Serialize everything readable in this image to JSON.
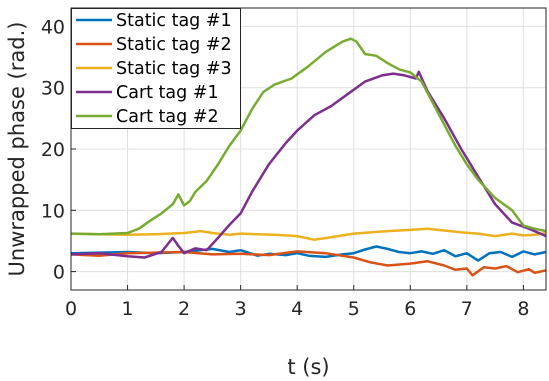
{
  "chart_data": {
    "type": "line",
    "title": "",
    "xlabel": "t (s)",
    "ylabel": "Unwrapped phase (rad.)",
    "xlim": [
      0,
      8.4
    ],
    "ylim": [
      -3,
      43
    ],
    "xticks": [
      0,
      1,
      2,
      3,
      4,
      5,
      6,
      7,
      8
    ],
    "yticks": [
      0,
      10,
      20,
      30,
      40
    ],
    "grid": true,
    "legend_position": "top-left",
    "series": [
      {
        "name": "Static tag #1",
        "color": "#0072bd",
        "x": [
          0,
          0.5,
          1,
          1.5,
          2,
          2.5,
          2.8,
          3,
          3.3,
          3.5,
          3.8,
          4,
          4.2,
          4.5,
          4.8,
          5,
          5.2,
          5.4,
          5.6,
          5.8,
          6,
          6.2,
          6.4,
          6.6,
          6.8,
          7,
          7.2,
          7.4,
          7.6,
          7.8,
          8,
          8.2,
          8.4
        ],
        "y": [
          3.0,
          3.1,
          3.2,
          3.0,
          3.2,
          3.7,
          3.2,
          3.5,
          2.6,
          2.9,
          2.7,
          3.0,
          2.6,
          2.4,
          2.8,
          3.0,
          3.6,
          4.1,
          3.7,
          3.2,
          3.0,
          3.3,
          2.9,
          3.5,
          2.5,
          3.0,
          1.8,
          3.0,
          3.2,
          2.4,
          3.3,
          2.8,
          3.2
        ]
      },
      {
        "name": "Static tag #2",
        "color": "#d95319",
        "x": [
          0,
          0.5,
          1,
          1.5,
          2,
          2.5,
          3,
          3.5,
          4,
          4.5,
          5,
          5.3,
          5.6,
          6,
          6.3,
          6.6,
          6.8,
          7,
          7.1,
          7.3,
          7.5,
          7.7,
          7.9,
          8.1,
          8.2,
          8.4
        ],
        "y": [
          2.8,
          2.6,
          3.0,
          3.1,
          3.2,
          2.8,
          2.9,
          2.7,
          3.3,
          3.0,
          2.3,
          1.5,
          1.0,
          1.3,
          1.7,
          1.0,
          0.3,
          0.5,
          -0.6,
          0.7,
          0.5,
          0.9,
          -0.1,
          0.4,
          -0.2,
          0.2
        ]
      },
      {
        "name": "Static tag #3",
        "color": "#edb120",
        "x": [
          0,
          0.5,
          1,
          1.5,
          2,
          2.3,
          2.5,
          2.8,
          3,
          3.3,
          3.6,
          4,
          4.3,
          4.6,
          5,
          5.3,
          5.6,
          6,
          6.3,
          6.6,
          6.9,
          7.2,
          7.5,
          7.8,
          8,
          8.2,
          8.4
        ],
        "y": [
          6.2,
          6.1,
          6.0,
          6.1,
          6.3,
          6.6,
          6.3,
          6.0,
          6.2,
          6.1,
          6.0,
          5.8,
          5.2,
          5.6,
          6.2,
          6.4,
          6.6,
          6.8,
          7.0,
          6.7,
          6.4,
          6.2,
          5.8,
          6.2,
          5.9,
          6.0,
          6.3
        ]
      },
      {
        "name": "Cart tag #1",
        "color": "#7e2f8e",
        "x": [
          0,
          0.5,
          1,
          1.3,
          1.6,
          1.8,
          1.9,
          2,
          2.2,
          2.4,
          2.6,
          2.8,
          3,
          3.2,
          3.5,
          3.8,
          4,
          4.3,
          4.6,
          4.9,
          5.2,
          5.5,
          5.7,
          5.9,
          6.1,
          6.15,
          6.3,
          6.6,
          6.9,
          7.2,
          7.5,
          7.8,
          8.1,
          8.4
        ],
        "y": [
          2.8,
          3.0,
          2.5,
          2.3,
          3.2,
          5.5,
          4.2,
          3.0,
          3.8,
          3.5,
          5.5,
          7.6,
          9.5,
          13.0,
          17.5,
          21.0,
          23.0,
          25.5,
          27.0,
          29.0,
          31.0,
          32.0,
          32.3,
          32.0,
          31.5,
          32.6,
          29.5,
          25.0,
          20.0,
          15.5,
          11.0,
          8.0,
          7.0,
          5.8
        ]
      },
      {
        "name": "Cart tag #2",
        "color": "#77ac30",
        "x": [
          0,
          0.5,
          1,
          1.2,
          1.4,
          1.6,
          1.8,
          1.9,
          2,
          2.1,
          2.2,
          2.4,
          2.6,
          2.8,
          3,
          3.2,
          3.4,
          3.6,
          3.9,
          4.2,
          4.5,
          4.8,
          4.95,
          5.05,
          5.2,
          5.4,
          5.6,
          5.8,
          6,
          6.2,
          6.4,
          6.6,
          6.8,
          7,
          7.2,
          7.5,
          7.8,
          8,
          8.2,
          8.4
        ],
        "y": [
          6.2,
          6.1,
          6.3,
          7.0,
          8.3,
          9.5,
          11.0,
          12.6,
          10.8,
          11.5,
          13.0,
          14.8,
          17.5,
          20.5,
          23.0,
          26.5,
          29.3,
          30.5,
          31.5,
          33.5,
          35.8,
          37.5,
          38.0,
          37.5,
          35.5,
          35.2,
          34.0,
          33.0,
          32.5,
          31.0,
          27.5,
          24.0,
          20.5,
          17.5,
          15.0,
          12.0,
          10.0,
          7.5,
          7.0,
          6.6
        ]
      }
    ]
  }
}
